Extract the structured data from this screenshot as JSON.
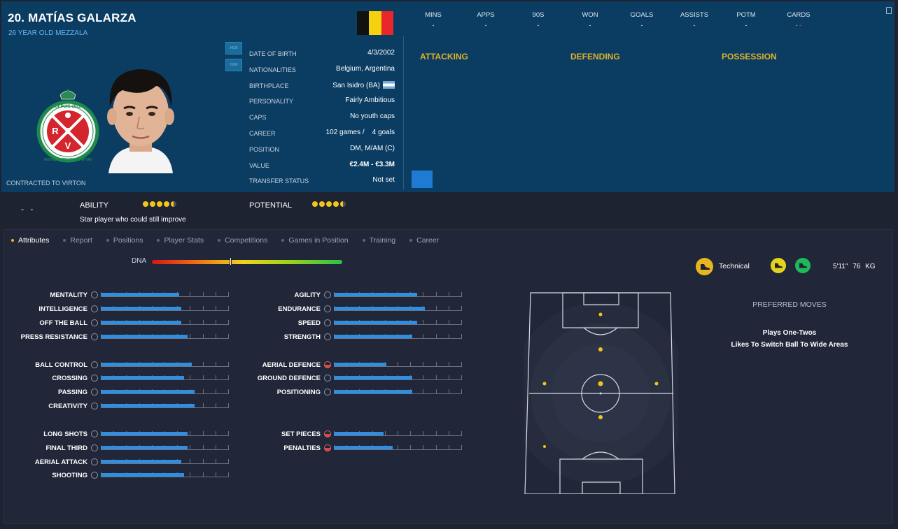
{
  "player": {
    "title": "20. MATÍAS GALARZA",
    "subtitle": "26 YEAR OLD MEZZALA",
    "contract": "CONTRACTED TO VIRTON",
    "side_buttons": [
      "HGN",
      "HGN"
    ]
  },
  "crest": {
    "top_text": "DEPUIS 1922",
    "ring_text": "ROYAL EXCELSIOR VIRTON",
    "letters": [
      "R",
      "E",
      "V"
    ]
  },
  "flag_colors": [
    "#111111",
    "#f4d20f",
    "#e8262b"
  ],
  "info": [
    {
      "label": "DATE OF BIRTH",
      "value": "4/3/2002"
    },
    {
      "label": "NATIONALITIES",
      "value": "Belgium, Argentina"
    },
    {
      "label": "BIRTHPLACE",
      "value": "San Isidro (BA)"
    },
    {
      "label": "PERSONALITY",
      "value": "Fairly Ambitious"
    },
    {
      "label": "CAPS",
      "value": "No youth caps"
    },
    {
      "label": "CAREER",
      "value": "102 games /    4 goals"
    },
    {
      "label": "POSITION",
      "value": "DM, M/AM (C)"
    },
    {
      "label": "VALUE",
      "value": "€2.4M - €3.3M"
    },
    {
      "label": "TRANSFER STATUS",
      "value": "Not set"
    }
  ],
  "stats": [
    {
      "label": "MINS",
      "value": "-"
    },
    {
      "label": "APPS",
      "value": "-"
    },
    {
      "label": "90S",
      "value": "-"
    },
    {
      "label": "WON",
      "value": "-"
    },
    {
      "label": "GOALS",
      "value": "-"
    },
    {
      "label": "ASSISTS",
      "value": "-"
    },
    {
      "label": "POTM",
      "value": "-"
    },
    {
      "label": "CARDS",
      "value": "- -"
    }
  ],
  "position_heads": [
    "ATTACKING",
    "DEFENDING",
    "POSSESSION"
  ],
  "ability": {
    "dashes": "- -",
    "ability_label": "ABILITY",
    "ability_stars": 4.5,
    "potential_label": "POTENTIAL",
    "potential_stars": 4.5,
    "description": "Star player who could still improve"
  },
  "tabs": [
    "Attributes",
    "Report",
    "Positions",
    "Player Stats",
    "Competitions",
    "Games in Position",
    "Training",
    "Career"
  ],
  "dna": {
    "label": "DNA",
    "marker": 0.41
  },
  "attributes_left": [
    {
      "name": "MENTALITY",
      "value": 0.61
    },
    {
      "name": "INTELLIGENCE",
      "value": 0.63
    },
    {
      "name": "OFF THE BALL",
      "value": 0.63
    },
    {
      "name": "PRESS RESISTANCE",
      "value": 0.68
    },
    {
      "name": "BALL CONTROL",
      "value": 0.71
    },
    {
      "name": "CROSSING",
      "value": 0.65
    },
    {
      "name": "PASSING",
      "value": 0.73
    },
    {
      "name": "CREATIVITY",
      "value": 0.73
    },
    {
      "name": "LONG SHOTS",
      "value": 0.68
    },
    {
      "name": "FINAL THIRD",
      "value": 0.68
    },
    {
      "name": "AERIAL ATTACK",
      "value": 0.63
    },
    {
      "name": "SHOOTING",
      "value": 0.65
    }
  ],
  "attributes_right": [
    {
      "name": "AGILITY",
      "value": 0.65,
      "warn": false
    },
    {
      "name": "ENDURANCE",
      "value": 0.71,
      "warn": false
    },
    {
      "name": "SPEED",
      "value": 0.65,
      "warn": false
    },
    {
      "name": "STRENGTH",
      "value": 0.61,
      "warn": false
    },
    {
      "name": "AERIAL DEFENCE",
      "value": 0.41,
      "warn": true
    },
    {
      "name": "GROUND DEFENCE",
      "value": 0.61,
      "warn": false
    },
    {
      "name": "POSITIONING",
      "value": 0.61,
      "warn": false
    },
    {
      "name": "SET PIECES",
      "value": 0.39,
      "warn": true
    },
    {
      "name": "PENALTIES",
      "value": 0.46,
      "warn": true
    }
  ],
  "footedness": {
    "technical_label": "Technical",
    "height": "5'11\"",
    "weight": "76 KG"
  },
  "preferred_moves": {
    "title": "PREFERRED MOVES",
    "items": [
      "Plays One-Twos",
      "Likes To Switch Ball To Wide Areas"
    ]
  }
}
